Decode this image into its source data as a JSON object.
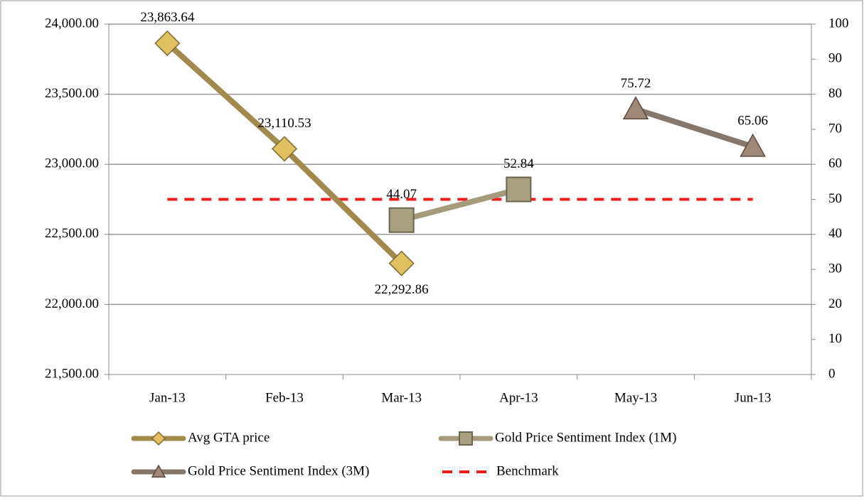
{
  "chart_data": {
    "type": "line",
    "categories": [
      "Jan-13",
      "Feb-13",
      "Mar-13",
      "Apr-13",
      "May-13",
      "Jun-13"
    ],
    "series": [
      {
        "name": "Avg GTA price",
        "color": "#a08a4e",
        "marker": "diamond",
        "marker_color": "#e0c060",
        "axis": "y",
        "values": [
          23863.64,
          23110.53,
          22292.86,
          null,
          null,
          null
        ],
        "value_labels": [
          "23,863.64",
          "23,110.53",
          "22,292.86",
          null,
          null,
          null
        ]
      },
      {
        "name": "Gold Price Sentiment Index (1M)",
        "color": "#a59b7c",
        "marker": "square",
        "marker_color": "#a8a080",
        "axis": "y2",
        "values": [
          null,
          null,
          44.07,
          52.84,
          null,
          null
        ]
      },
      {
        "name": "Gold Price Sentiment Index (3M)",
        "color": "#86776d",
        "marker": "triangle",
        "marker_color": "#a08878",
        "axis": "y2",
        "values": [
          null,
          null,
          null,
          null,
          75.72,
          65.06
        ]
      },
      {
        "name": "Benchmark",
        "color": "#ee1c1c",
        "linestyle": "dashed",
        "axis": "y2",
        "values": [
          50,
          50,
          50,
          50,
          50,
          50
        ]
      }
    ],
    "ylim": [
      21500,
      24000
    ],
    "yticks": [
      {
        "value": 21500,
        "label": "21,500.00"
      },
      {
        "value": 22000,
        "label": "22,000.00"
      },
      {
        "value": 22500,
        "label": "22,500.00"
      },
      {
        "value": 23000,
        "label": "23,000.00"
      },
      {
        "value": 23500,
        "label": "23,500.00"
      },
      {
        "value": 24000,
        "label": "24,000.00"
      }
    ],
    "y2lim": [
      0,
      100
    ],
    "y2ticks": [
      0,
      10,
      20,
      30,
      40,
      50,
      60,
      70,
      80,
      90,
      100
    ],
    "grid": true,
    "legend": "bottom"
  }
}
